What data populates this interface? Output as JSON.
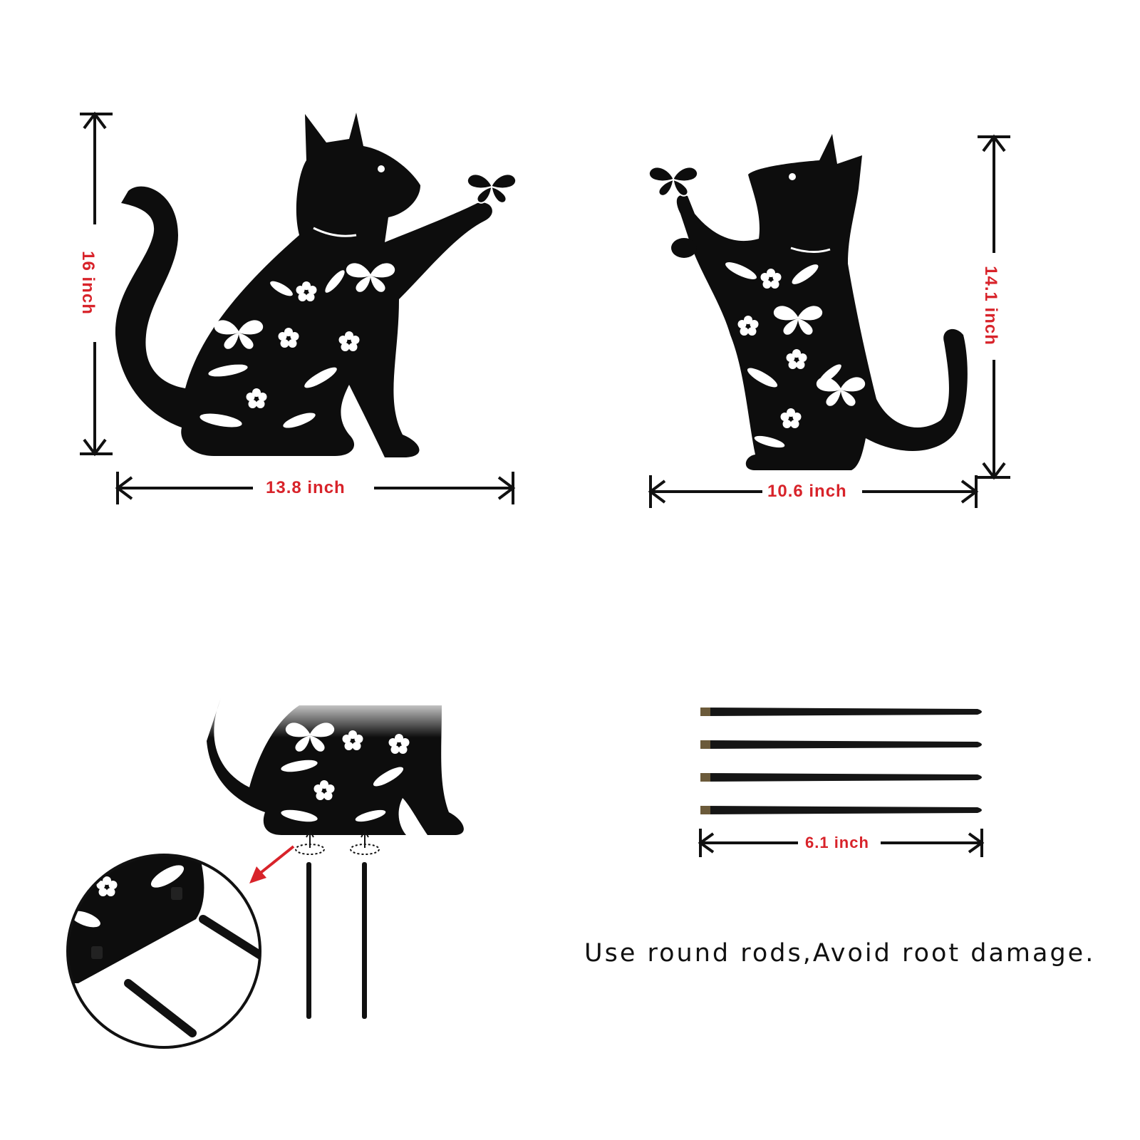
{
  "dimensions": {
    "cat1_height": "16  inch",
    "cat1_width": "13.8 inch",
    "cat2_height": "14.1 inch",
    "cat2_width": "10.6 inch",
    "rod_length": "6.1 inch"
  },
  "caption": "Use round rods,Avoid root damage.",
  "colors": {
    "accent_red": "#d8232a",
    "silhouette": "#0d0d0d",
    "background": "#ffffff"
  },
  "rods": {
    "count": 4
  }
}
